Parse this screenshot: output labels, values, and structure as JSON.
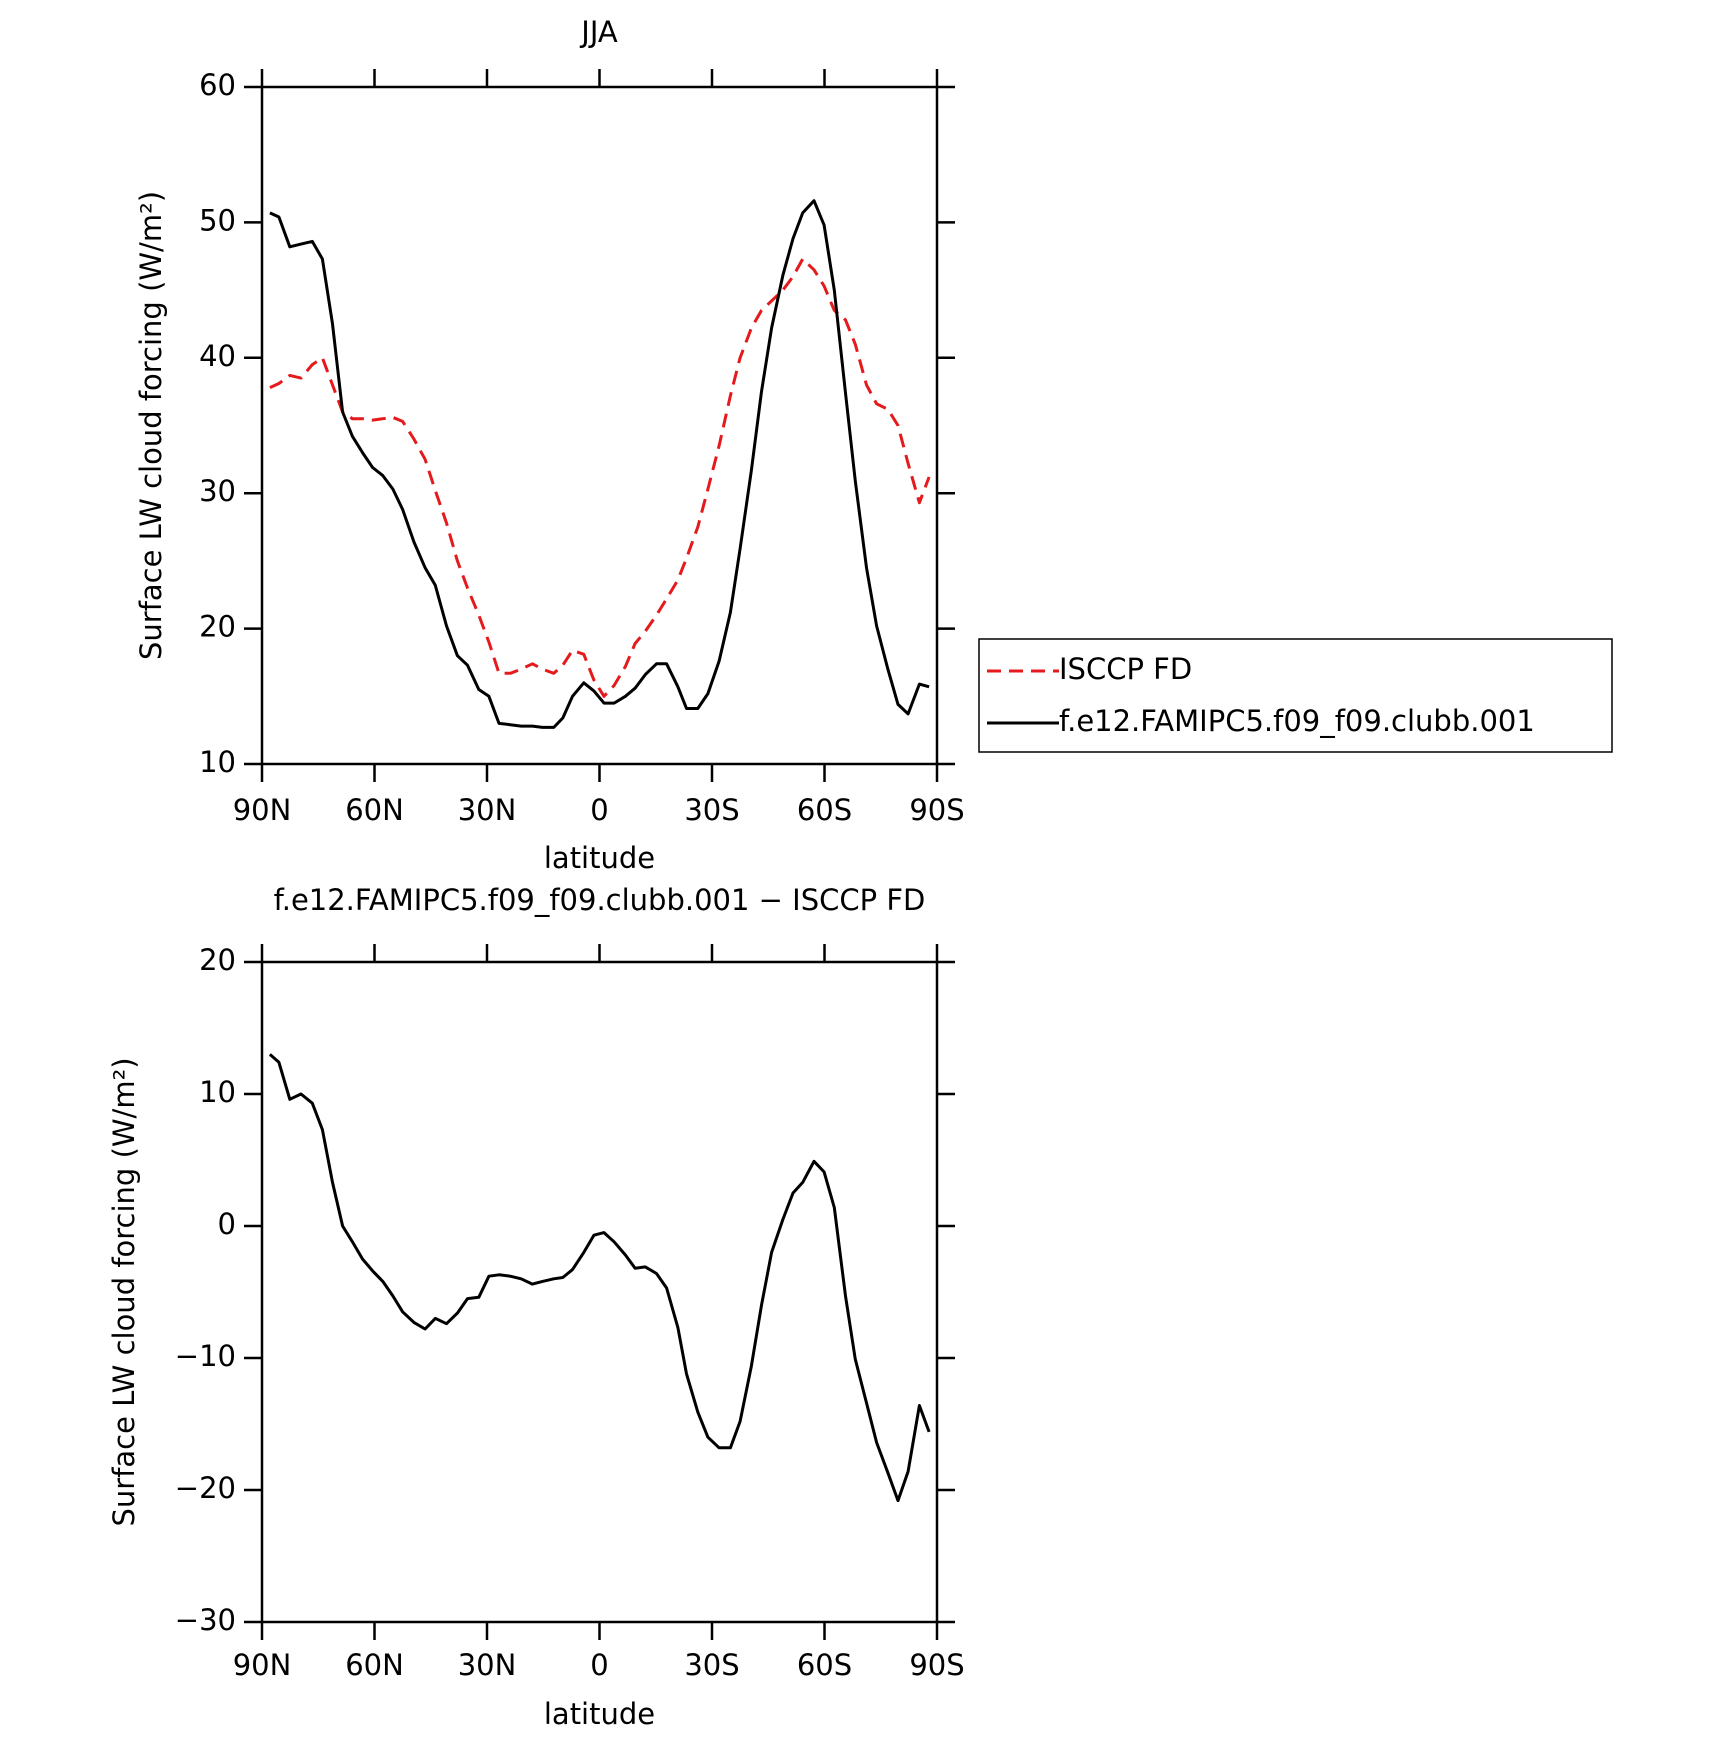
{
  "chart_data": [
    {
      "type": "line",
      "title": "JJA",
      "xlabel": "latitude",
      "ylabel": "Surface LW cloud forcing (W/m²)",
      "x": [
        87.9,
        85.5,
        82.6,
        79.6,
        76.6,
        73.9,
        71.2,
        68.5,
        65.9,
        63.2,
        60.5,
        57.8,
        55.1,
        52.5,
        49.5,
        46.5,
        43.8,
        40.8,
        37.9,
        35.2,
        32.2,
        29.5,
        26.8,
        23.8,
        20.9,
        17.9,
        15.2,
        12.2,
        9.8,
        7.2,
        4.2,
        1.5,
        -1.2,
        -3.9,
        -6.9,
        -9.5,
        -12.2,
        -15.2,
        -17.9,
        -20.9,
        -23.2,
        -26.2,
        -28.9,
        -31.9,
        -34.9,
        -37.5,
        -40.5,
        -43.2,
        -45.9,
        -48.9,
        -51.6,
        -54.2,
        -57.2,
        -59.9,
        -62.6,
        -65.6,
        -68.2,
        -71.2,
        -73.9,
        -76.9,
        -79.6,
        -82.3,
        -85.3,
        -87.9
      ],
      "series": [
        {
          "name": "ISCCP FD",
          "color": "#e41a1c",
          "dashed": true,
          "values": [
            37.8,
            38.1,
            38.7,
            38.5,
            39.5,
            40.0,
            38.0,
            36.0,
            35.5,
            35.5,
            35.4,
            35.5,
            35.6,
            35.3,
            34.0,
            32.5,
            30.2,
            27.8,
            25.0,
            23.0,
            21.0,
            19.0,
            16.7,
            16.7,
            17.0,
            17.4,
            17.0,
            16.7,
            17.3,
            18.4,
            18.1,
            16.2,
            15.0,
            15.8,
            17.2,
            18.9,
            19.8,
            21.0,
            22.2,
            23.6,
            25.2,
            27.5,
            30.3,
            33.5,
            37.2,
            40.0,
            42.2,
            43.5,
            44.2,
            45.0,
            46.0,
            47.3,
            46.5,
            45.3,
            43.5,
            42.8,
            41.0,
            38.0,
            36.6,
            36.2,
            35.0,
            32.2,
            29.3,
            31.2
          ]
        },
        {
          "name": "f.e12.FAMIPC5.f09_f09.clubb.001",
          "color": "#000000",
          "dashed": false,
          "values": [
            50.7,
            50.4,
            48.2,
            48.4,
            48.6,
            47.3,
            42.5,
            36.0,
            34.2,
            33.0,
            31.9,
            31.3,
            30.3,
            28.8,
            26.4,
            24.5,
            23.2,
            20.2,
            18.0,
            17.3,
            15.5,
            15.0,
            13.0,
            12.9,
            12.8,
            12.8,
            12.7,
            12.7,
            13.4,
            15.0,
            16.0,
            15.4,
            14.5,
            14.5,
            15.0,
            15.6,
            16.6,
            17.4,
            17.4,
            15.7,
            14.1,
            14.1,
            15.2,
            17.6,
            21.2,
            25.9,
            31.7,
            37.5,
            42.2,
            46.1,
            48.8,
            50.7,
            51.6,
            49.8,
            45.0,
            37.4,
            30.9,
            24.5,
            20.2,
            17.0,
            14.4,
            13.7,
            15.9,
            15.7
          ]
        }
      ],
      "xlim": [
        90,
        -90
      ],
      "xticks": [
        {
          "value": 90,
          "label": "90N"
        },
        {
          "value": 60,
          "label": "60N"
        },
        {
          "value": 30,
          "label": "30N"
        },
        0,
        {
          "value": -30,
          "label": "30S"
        },
        {
          "value": -60,
          "label": "60S"
        },
        {
          "value": -90,
          "label": "90S"
        }
      ],
      "ylim": [
        10,
        60
      ],
      "yticks": [
        10,
        20,
        30,
        40,
        50,
        60
      ],
      "legend": "right",
      "grid": false
    },
    {
      "type": "line",
      "title": "f.e12.FAMIPC5.f09_f09.clubb.001 − ISCCP FD",
      "xlabel": "latitude",
      "ylabel": "Surface LW cloud forcing (W/m²)",
      "x": [
        87.9,
        85.5,
        82.6,
        79.6,
        76.6,
        73.9,
        71.2,
        68.5,
        65.9,
        63.2,
        60.5,
        57.8,
        55.1,
        52.5,
        49.5,
        46.5,
        43.8,
        40.8,
        37.9,
        35.2,
        32.2,
        29.5,
        26.8,
        23.8,
        20.9,
        17.9,
        15.2,
        12.2,
        9.8,
        7.2,
        4.2,
        1.5,
        -1.2,
        -3.9,
        -6.9,
        -9.5,
        -12.2,
        -15.2,
        -17.9,
        -20.9,
        -23.2,
        -26.2,
        -28.9,
        -31.9,
        -34.9,
        -37.5,
        -40.5,
        -43.2,
        -45.9,
        -48.9,
        -51.6,
        -54.2,
        -57.2,
        -59.9,
        -62.6,
        -65.6,
        -68.2,
        -71.2,
        -73.9,
        -76.9,
        -79.6,
        -82.3,
        -85.3,
        -87.9
      ],
      "values": [
        13.0,
        12.4,
        9.6,
        10.0,
        9.3,
        7.3,
        3.3,
        0.0,
        -1.2,
        -2.5,
        -3.4,
        -4.2,
        -5.3,
        -6.5,
        -7.3,
        -7.8,
        -7.0,
        -7.4,
        -6.6,
        -5.5,
        -5.4,
        -3.8,
        -3.7,
        -3.8,
        -4.0,
        -4.4,
        -4.2,
        -4.0,
        -3.9,
        -3.3,
        -2.0,
        -0.7,
        -0.5,
        -1.2,
        -2.2,
        -3.2,
        -3.1,
        -3.6,
        -4.7,
        -7.7,
        -11.2,
        -14.1,
        -16.0,
        -16.8,
        -16.8,
        -14.8,
        -10.6,
        -6.0,
        -2.0,
        0.5,
        2.5,
        3.3,
        4.9,
        4.1,
        1.4,
        -5.3,
        -10.1,
        -13.4,
        -16.4,
        -18.7,
        -20.8,
        -18.6,
        -13.6,
        -15.6
      ],
      "color": "#000000",
      "xlim": [
        90,
        -90
      ],
      "xticks": [
        {
          "value": 90,
          "label": "90N"
        },
        {
          "value": 60,
          "label": "60N"
        },
        {
          "value": 30,
          "label": "30N"
        },
        0,
        {
          "value": -30,
          "label": "30S"
        },
        {
          "value": -60,
          "label": "60S"
        },
        {
          "value": -90,
          "label": "90S"
        }
      ],
      "ylim": [
        -30,
        20
      ],
      "yticks": [
        {
          "value": -30,
          "label": "−30"
        },
        {
          "value": -20,
          "label": "−20"
        },
        {
          "value": -10,
          "label": "−10"
        },
        0,
        10,
        20
      ],
      "grid": false
    }
  ]
}
